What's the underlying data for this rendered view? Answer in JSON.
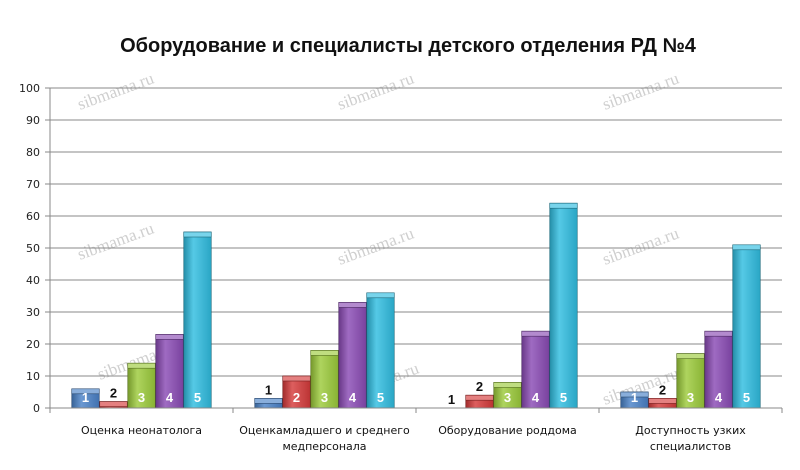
{
  "chart_data": {
    "type": "bar",
    "title": "Оборудование и специалисты детского отделения РД №4",
    "categories": [
      [
        "Оценка неонатолога"
      ],
      [
        "Оценкамладшего и среднего",
        "медперсонала"
      ],
      [
        "Оборудование роддома"
      ],
      [
        "Доступность узких",
        "специалистов"
      ]
    ],
    "series": [
      {
        "label": "1",
        "color": "#4a82c8",
        "values": [
          6,
          3,
          0,
          5
        ]
      },
      {
        "label": "2",
        "color": "#d63b3b",
        "values": [
          2,
          10,
          4,
          3
        ]
      },
      {
        "label": "3",
        "color": "#9ccb3b",
        "values": [
          14,
          18,
          8,
          17
        ]
      },
      {
        "label": "4",
        "color": "#8a4bb4",
        "values": [
          23,
          33,
          24,
          24
        ]
      },
      {
        "label": "5",
        "color": "#30bde0",
        "values": [
          55,
          36,
          64,
          51
        ]
      }
    ],
    "ylim": [
      0,
      100
    ],
    "yticks": [
      0,
      10,
      20,
      30,
      40,
      50,
      60,
      70,
      80,
      90,
      100
    ],
    "grid": true,
    "watermark": "sibmama.ru"
  }
}
